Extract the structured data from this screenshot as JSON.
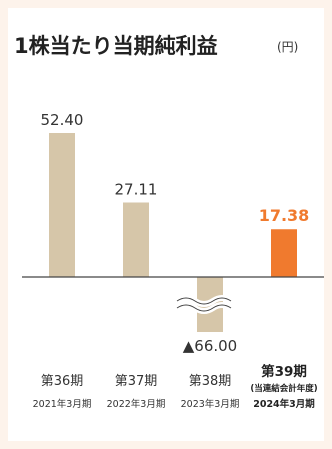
{
  "chart_data": {
    "type": "bar",
    "title": "1株当たり当期純利益",
    "unit": "(円)",
    "categories": [
      "第36期",
      "第37期",
      "第38期",
      "第39期"
    ],
    "category_notes": [
      "",
      "",
      "",
      "(当連結会計年度)"
    ],
    "dates": [
      "2021年3月期",
      "2022年3月期",
      "2023年3月期",
      "2024年3月期"
    ],
    "values": [
      52.4,
      27.11,
      -66.0,
      17.38
    ],
    "value_labels": [
      "52.40",
      "27.11",
      "▲66.00",
      "17.38"
    ],
    "highlight_index": 3,
    "axis_break": true,
    "colors": {
      "bar": "#d6c6a9",
      "highlight": "#f07a2e",
      "background": "#fdf3eb"
    }
  }
}
